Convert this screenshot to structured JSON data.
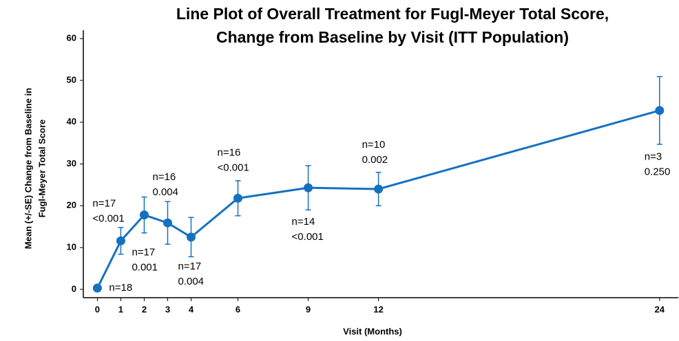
{
  "chart_data": {
    "type": "line",
    "title": [
      "Line Plot of Overall Treatment for Fugl-Meyer Total Score,",
      "Change from Baseline by Visit (ITT Population)"
    ],
    "x_label": "Visit (Months)",
    "y_label": [
      "Mean (+/-SE) Change from Baseline in",
      "Fugl-Meyer Total Score"
    ],
    "x": [
      0,
      1,
      2,
      3,
      4,
      6,
      9,
      12,
      24
    ],
    "series": [
      {
        "name": "Overall",
        "color": "#1571c0",
        "values": [
          0.3,
          11.6,
          17.8,
          15.9,
          12.5,
          21.8,
          24.3,
          24.0,
          42.8
        ],
        "errors": [
          0,
          3.2,
          4.3,
          5.1,
          4.7,
          4.2,
          5.3,
          4.0,
          8.1
        ],
        "n_labels": [
          "n=18",
          "n=17",
          "n=17",
          "n=16",
          "n=17",
          "n=16",
          "n=14",
          "n=10",
          "n=3"
        ],
        "p_labels": [
          null,
          "<0.001",
          "0.001",
          "0.004",
          "0.004",
          "<0.001",
          "<0.001",
          "0.002",
          "0.250"
        ]
      }
    ],
    "xlim": [
      -0.6,
      24.8
    ],
    "xticks": [
      0,
      1,
      2,
      3,
      4,
      6,
      9,
      12,
      24
    ],
    "ylim": [
      -2,
      62
    ],
    "yticks": [
      0,
      10,
      20,
      30,
      40,
      50,
      60
    ]
  }
}
